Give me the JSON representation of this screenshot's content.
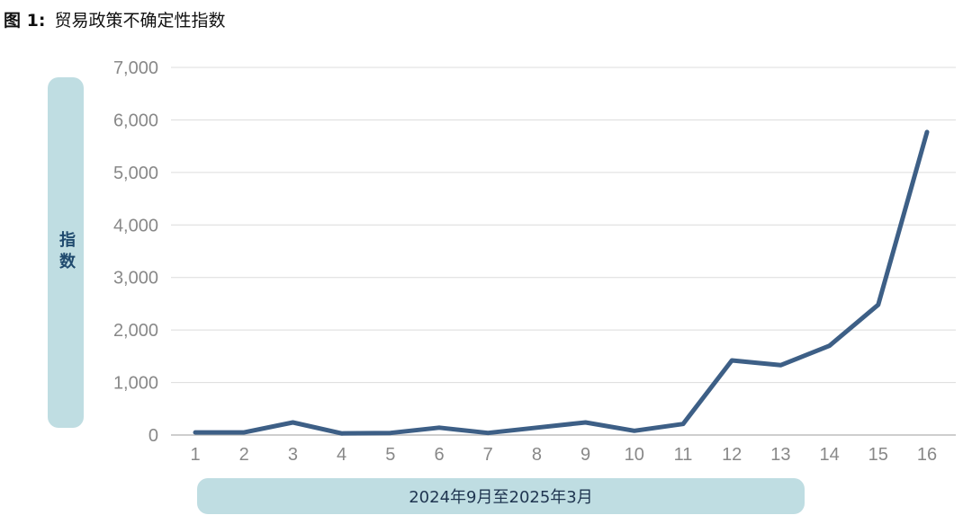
{
  "figure": {
    "number": "图 1:",
    "title": "贸易政策不确定性指数"
  },
  "chart_data": {
    "type": "line",
    "ylabel": "指数",
    "xlabel": "2024年9月至2025年3月",
    "ylim": [
      0,
      7000
    ],
    "yticks": [
      0,
      1000,
      2000,
      3000,
      4000,
      5000,
      6000,
      7000
    ],
    "ytick_labels": [
      "0",
      "1,000",
      "2,000",
      "3,000",
      "4,000",
      "5,000",
      "6,000",
      "7,000"
    ],
    "x": [
      1,
      2,
      3,
      4,
      5,
      6,
      7,
      8,
      9,
      10,
      11,
      12,
      13,
      14,
      15,
      16
    ],
    "x_labels": [
      "1",
      "2",
      "3",
      "4",
      "5",
      "6",
      "7",
      "8",
      "9",
      "10",
      "11",
      "12",
      "13",
      "14",
      "15",
      "16"
    ],
    "series": [
      {
        "values": [
          50,
          50,
          240,
          30,
          40,
          140,
          40,
          140,
          240,
          80,
          210,
          1420,
          1330,
          1700,
          2480,
          5770
        ]
      }
    ],
    "grid": true,
    "line_color": "#3d5f86",
    "grid_color": "#dcdcdc"
  }
}
